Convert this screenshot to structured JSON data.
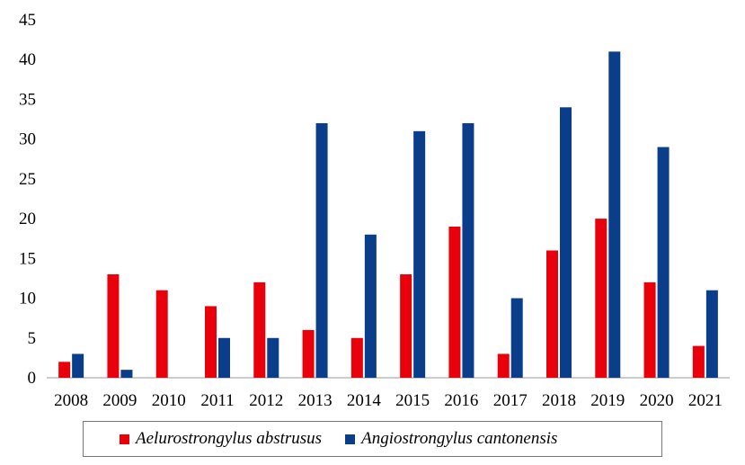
{
  "chart_data": {
    "type": "bar",
    "title": "",
    "xlabel": "",
    "ylabel": "",
    "ylim": [
      0,
      45
    ],
    "yticks": [
      "0",
      "5",
      "10",
      "15",
      "20",
      "25",
      "30",
      "35",
      "40",
      "45"
    ],
    "categories": [
      "2008",
      "2009",
      "2010",
      "2011",
      "2012",
      "2013",
      "2014",
      "2015",
      "2016",
      "2017",
      "2018",
      "2019",
      "2020",
      "2021"
    ],
    "series": [
      {
        "name": "Aelurostrongylus abstrusus",
        "color": "#e8000b",
        "values": [
          2,
          13,
          11,
          9,
          12,
          6,
          5,
          13,
          19,
          3,
          16,
          20,
          12,
          4
        ]
      },
      {
        "name": "Angiostrongylus cantonensis",
        "color": "#0b3e8a",
        "values": [
          3,
          1,
          0,
          5,
          5,
          32,
          18,
          31,
          32,
          10,
          34,
          41,
          29,
          11
        ]
      }
    ],
    "grid": false,
    "legend_position": "bottom"
  }
}
